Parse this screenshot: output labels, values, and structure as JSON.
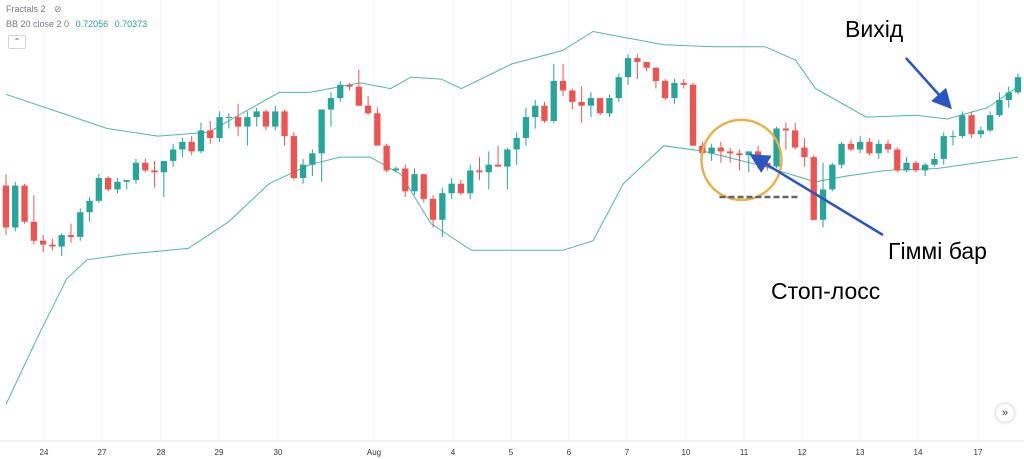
{
  "legend": {
    "fractals": "Fractals 2",
    "bb_label": "BB 20 close 2 0",
    "bb_value1": "0.72056",
    "bb_value2": "0.70373"
  },
  "controls": {
    "collapse_glyph": "⌃",
    "scroll_glyph": "»"
  },
  "annotations": {
    "exit": "Вихід",
    "gimmi": "Гіммі  бар",
    "stop": "Стоп-лосс"
  },
  "colors": {
    "up": "#26a69a",
    "down": "#ef5350",
    "band": "#4fb8a6",
    "highlight": "#e6b24a",
    "arrow": "#2a55c4",
    "stop_line": "#666666"
  },
  "chart_data": {
    "type": "candlestick",
    "indicator": "Bollinger Bands (20, close, 2)",
    "x_tick_labels": [
      "24",
      "27",
      "28",
      "29",
      "30",
      "Aug",
      "4",
      "5",
      "6",
      "7",
      "10",
      "11",
      "12",
      "13",
      "14",
      "17"
    ],
    "ohlc": [
      [
        0.7119,
        0.7125,
        0.7093,
        0.7097
      ],
      [
        0.7097,
        0.7121,
        0.7095,
        0.7119
      ],
      [
        0.7119,
        0.712,
        0.7099,
        0.71
      ],
      [
        0.71,
        0.7114,
        0.7088,
        0.709
      ],
      [
        0.709,
        0.7093,
        0.7084,
        0.7088
      ],
      [
        0.7088,
        0.7091,
        0.7085,
        0.7087
      ],
      [
        0.7087,
        0.7094,
        0.7082,
        0.7093
      ],
      [
        0.7093,
        0.7099,
        0.7089,
        0.7092
      ],
      [
        0.7092,
        0.7107,
        0.709,
        0.7105
      ],
      [
        0.7105,
        0.7113,
        0.71,
        0.7111
      ],
      [
        0.7111,
        0.7125,
        0.711,
        0.7123
      ],
      [
        0.7123,
        0.7124,
        0.7116,
        0.7117
      ],
      [
        0.7117,
        0.7123,
        0.7115,
        0.7121
      ],
      [
        0.7121,
        0.7122,
        0.7117,
        0.7122
      ],
      [
        0.7122,
        0.7133,
        0.712,
        0.7131
      ],
      [
        0.7131,
        0.7133,
        0.7126,
        0.7127
      ],
      [
        0.7127,
        0.7132,
        0.7118,
        0.7126
      ],
      [
        0.7126,
        0.7131,
        0.7113,
        0.7132
      ],
      [
        0.7132,
        0.7141,
        0.7129,
        0.7138
      ],
      [
        0.7138,
        0.7144,
        0.7134,
        0.7142
      ],
      [
        0.7142,
        0.7145,
        0.7135,
        0.7137
      ],
      [
        0.7137,
        0.7152,
        0.7136,
        0.7148
      ],
      [
        0.7148,
        0.7153,
        0.7141,
        0.7144
      ],
      [
        0.7144,
        0.7158,
        0.7142,
        0.7155
      ],
      [
        0.7155,
        0.7157,
        0.7149,
        0.7155
      ],
      [
        0.7155,
        0.7162,
        0.7145,
        0.715
      ],
      [
        0.715,
        0.7158,
        0.714,
        0.7155
      ],
      [
        0.7155,
        0.716,
        0.715,
        0.7158
      ],
      [
        0.7158,
        0.7159,
        0.7148,
        0.715
      ],
      [
        0.715,
        0.7161,
        0.7148,
        0.7158
      ],
      [
        0.7158,
        0.7159,
        0.714,
        0.7145
      ],
      [
        0.7145,
        0.7147,
        0.7122,
        0.7123
      ],
      [
        0.7123,
        0.7133,
        0.712,
        0.713
      ],
      [
        0.713,
        0.7138,
        0.7124,
        0.7136
      ],
      [
        0.7136,
        0.7159,
        0.7121,
        0.7159
      ],
      [
        0.7159,
        0.7168,
        0.715,
        0.7165
      ],
      [
        0.7165,
        0.7174,
        0.7163,
        0.7172
      ],
      [
        0.7172,
        0.7173,
        0.7169,
        0.7171
      ],
      [
        0.7171,
        0.718,
        0.7161,
        0.7161
      ],
      [
        0.7161,
        0.7166,
        0.7156,
        0.7157
      ],
      [
        0.7157,
        0.716,
        0.714,
        0.714
      ],
      [
        0.714,
        0.7141,
        0.7126,
        0.7127
      ],
      [
        0.7127,
        0.7129,
        0.7126,
        0.7128
      ],
      [
        0.7128,
        0.713,
        0.7113,
        0.7116
      ],
      [
        0.7116,
        0.7128,
        0.7114,
        0.7125
      ],
      [
        0.7125,
        0.7125,
        0.711,
        0.7112
      ],
      [
        0.7112,
        0.7114,
        0.7097,
        0.7101
      ],
      [
        0.7101,
        0.7118,
        0.7092,
        0.7115
      ],
      [
        0.7115,
        0.7123,
        0.7112,
        0.712
      ],
      [
        0.712,
        0.7122,
        0.7114,
        0.7115
      ],
      [
        0.7115,
        0.713,
        0.7112,
        0.7127
      ],
      [
        0.7127,
        0.7134,
        0.7122,
        0.7126
      ],
      [
        0.7126,
        0.7137,
        0.7117,
        0.713
      ],
      [
        0.713,
        0.714,
        0.7129,
        0.7129
      ],
      [
        0.7129,
        0.7139,
        0.7117,
        0.7138
      ],
      [
        0.7138,
        0.7147,
        0.713,
        0.7144
      ],
      [
        0.7144,
        0.716,
        0.714,
        0.7155
      ],
      [
        0.7155,
        0.7164,
        0.7149,
        0.7161
      ],
      [
        0.7161,
        0.7163,
        0.7152,
        0.7153
      ],
      [
        0.7153,
        0.7183,
        0.7152,
        0.7174
      ],
      [
        0.7174,
        0.7183,
        0.7166,
        0.7169
      ],
      [
        0.7169,
        0.717,
        0.7159,
        0.7163
      ],
      [
        0.7163,
        0.7171,
        0.7152,
        0.7161
      ],
      [
        0.7161,
        0.7168,
        0.7155,
        0.7165
      ],
      [
        0.7165,
        0.7165,
        0.7156,
        0.7157
      ],
      [
        0.7157,
        0.7167,
        0.7155,
        0.7165
      ],
      [
        0.7165,
        0.7178,
        0.7163,
        0.7176
      ],
      [
        0.7176,
        0.7188,
        0.7172,
        0.7186
      ],
      [
        0.7186,
        0.7188,
        0.7175,
        0.7184
      ],
      [
        0.7184,
        0.7184,
        0.7179,
        0.7181
      ],
      [
        0.7181,
        0.7181,
        0.717,
        0.7174
      ],
      [
        0.7174,
        0.7175,
        0.7164,
        0.7165
      ],
      [
        0.7165,
        0.7175,
        0.7162,
        0.7173
      ],
      [
        0.7173,
        0.7175,
        0.717,
        0.7172
      ],
      [
        0.7172,
        0.7173,
        0.714,
        0.714
      ],
      [
        0.714,
        0.7142,
        0.7135,
        0.7136
      ],
      [
        0.7136,
        0.7141,
        0.7132,
        0.7139
      ],
      [
        0.7139,
        0.7142,
        0.7131,
        0.7137
      ],
      [
        0.7137,
        0.7139,
        0.7131,
        0.7136
      ],
      [
        0.7136,
        0.7138,
        0.7127,
        0.7135
      ],
      [
        0.7135,
        0.7137,
        0.7126,
        0.7137
      ],
      [
        0.7137,
        0.714,
        0.7128,
        0.7131
      ],
      [
        0.7131,
        0.7134,
        0.7127,
        0.7129
      ],
      [
        0.7129,
        0.715,
        0.7128,
        0.7149
      ],
      [
        0.7149,
        0.7152,
        0.7138,
        0.7148
      ],
      [
        0.7148,
        0.7152,
        0.7138,
        0.7139
      ],
      [
        0.7139,
        0.7144,
        0.7129,
        0.7134
      ],
      [
        0.7134,
        0.7135,
        0.7101,
        0.7101
      ],
      [
        0.7101,
        0.7131,
        0.7097,
        0.7117
      ],
      [
        0.7117,
        0.7131,
        0.7116,
        0.713
      ],
      [
        0.713,
        0.7142,
        0.7128,
        0.7141
      ],
      [
        0.7141,
        0.7143,
        0.7137,
        0.7138
      ],
      [
        0.7138,
        0.7145,
        0.7136,
        0.7142
      ],
      [
        0.7142,
        0.7144,
        0.7135,
        0.7136
      ],
      [
        0.7136,
        0.7143,
        0.7133,
        0.7141
      ],
      [
        0.7141,
        0.7143,
        0.7136,
        0.7138
      ],
      [
        0.7138,
        0.7139,
        0.7126,
        0.7127
      ],
      [
        0.7127,
        0.7134,
        0.7126,
        0.7131
      ],
      [
        0.7131,
        0.7132,
        0.7126,
        0.7127
      ],
      [
        0.7127,
        0.7131,
        0.7124,
        0.713
      ],
      [
        0.713,
        0.7136,
        0.7129,
        0.7133
      ],
      [
        0.7133,
        0.7147,
        0.713,
        0.7145
      ],
      [
        0.7145,
        0.7148,
        0.714,
        0.7145
      ],
      [
        0.7145,
        0.7158,
        0.7144,
        0.7156
      ],
      [
        0.7156,
        0.7158,
        0.7144,
        0.7146
      ],
      [
        0.7146,
        0.715,
        0.7144,
        0.7148
      ],
      [
        0.7148,
        0.7158,
        0.7147,
        0.7156
      ],
      [
        0.7156,
        0.7168,
        0.7155,
        0.7164
      ],
      [
        0.7164,
        0.7171,
        0.716,
        0.7168
      ],
      [
        0.7168,
        0.7178,
        0.7167,
        0.7176
      ]
    ],
    "bb_upper": [
      [
        0,
        0.7167
      ],
      [
        0.05,
        0.7158
      ],
      [
        0.1,
        0.7149
      ],
      [
        0.15,
        0.7145
      ],
      [
        0.2,
        0.7147
      ],
      [
        0.27,
        0.7168
      ],
      [
        0.3,
        0.7168
      ],
      [
        0.35,
        0.7173
      ],
      [
        0.38,
        0.717
      ],
      [
        0.4,
        0.7176
      ],
      [
        0.43,
        0.7175
      ],
      [
        0.45,
        0.717
      ],
      [
        0.5,
        0.7183
      ],
      [
        0.55,
        0.719
      ],
      [
        0.58,
        0.72
      ],
      [
        0.61,
        0.7197
      ],
      [
        0.65,
        0.7193
      ],
      [
        0.7,
        0.7192
      ],
      [
        0.75,
        0.7192
      ],
      [
        0.78,
        0.7185
      ],
      [
        0.8,
        0.717
      ],
      [
        0.85,
        0.7155
      ],
      [
        0.9,
        0.7156
      ],
      [
        0.93,
        0.7154
      ],
      [
        0.97,
        0.716
      ],
      [
        1,
        0.7171
      ]
    ],
    "bb_lower": [
      [
        0,
        0.7004
      ],
      [
        0.03,
        0.7038
      ],
      [
        0.06,
        0.707
      ],
      [
        0.08,
        0.708
      ],
      [
        0.12,
        0.7083
      ],
      [
        0.18,
        0.7086
      ],
      [
        0.22,
        0.71
      ],
      [
        0.26,
        0.712
      ],
      [
        0.3,
        0.713
      ],
      [
        0.33,
        0.7134
      ],
      [
        0.36,
        0.7134
      ],
      [
        0.39,
        0.7125
      ],
      [
        0.42,
        0.7099
      ],
      [
        0.46,
        0.7085
      ],
      [
        0.5,
        0.7085
      ],
      [
        0.55,
        0.7085
      ],
      [
        0.58,
        0.709
      ],
      [
        0.61,
        0.712
      ],
      [
        0.63,
        0.713
      ],
      [
        0.65,
        0.714
      ],
      [
        0.69,
        0.7137
      ],
      [
        0.72,
        0.7133
      ],
      [
        0.75,
        0.7129
      ],
      [
        0.8,
        0.7121
      ],
      [
        0.83,
        0.7124
      ],
      [
        0.87,
        0.7127
      ],
      [
        0.92,
        0.7128
      ],
      [
        0.96,
        0.7131
      ],
      [
        1,
        0.7134
      ]
    ],
    "gimmi_index": 79,
    "stop_level": 0.7113
  }
}
